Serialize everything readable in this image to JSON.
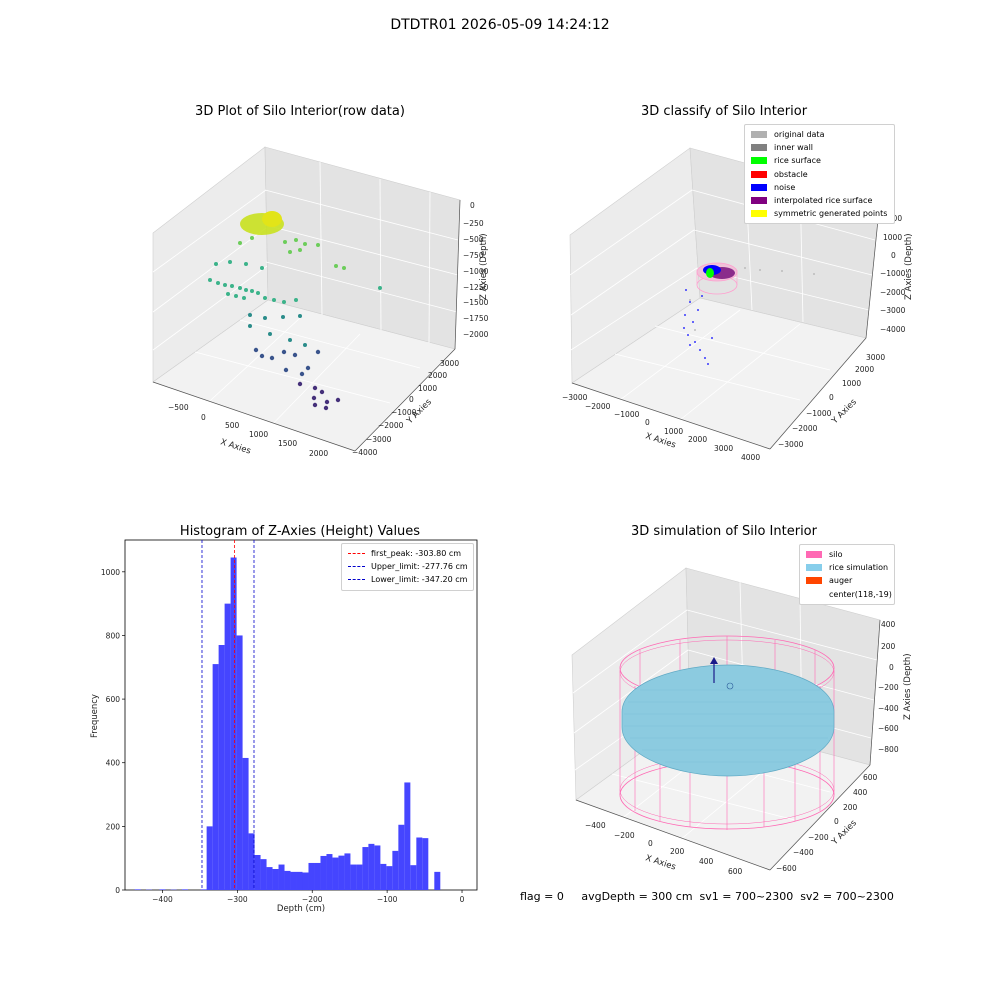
{
  "suptitle": "DTDTR01 2026-05-09 14:24:12",
  "panels": {
    "raw": {
      "title": "3D Plot of Silo Interior(row data)",
      "xlabel": "X Axies",
      "ylabel": "Y Axies",
      "zlabel": "Z Axies (Depth)",
      "xticks": [
        "−500",
        "0",
        "500",
        "1000",
        "1500",
        "2000"
      ],
      "yticks": [
        "−4000",
        "−3000",
        "−2000",
        "−1000",
        "0",
        "1000",
        "2000",
        "3000"
      ],
      "zticks": [
        "0",
        "−250",
        "−500",
        "−750",
        "−1000",
        "−1250",
        "−1500",
        "−1750",
        "−2000"
      ]
    },
    "classify": {
      "title": "3D classify of Silo Interior",
      "xlabel": "X Axies",
      "ylabel": "Y Axies",
      "zlabel": "Z Axies (Depth)",
      "xticks": [
        "−3000",
        "−2000",
        "−1000",
        "0",
        "1000",
        "2000",
        "3000",
        "4000"
      ],
      "yticks": [
        "−3000",
        "−2000",
        "−1000",
        "0",
        "1000",
        "2000",
        "3000"
      ],
      "zticks": [
        "2000",
        "1000",
        "0",
        "−1000",
        "−2000",
        "−3000",
        "−4000"
      ],
      "legend": [
        {
          "label": "original data",
          "color": "#b0b0b0"
        },
        {
          "label": "inner wall",
          "color": "#808080"
        },
        {
          "label": "rice surface",
          "color": "#00ff00"
        },
        {
          "label": "obstacle",
          "color": "#ff0000"
        },
        {
          "label": "noise",
          "color": "#0000ff"
        },
        {
          "label": "interpolated rice surface",
          "color": "#800080"
        },
        {
          "label": "symmetric generated points",
          "color": "#ffff00"
        }
      ]
    },
    "simulation": {
      "title": "3D simulation of Silo Interior",
      "xlabel": "X Axies",
      "ylabel": "Y Axies",
      "zlabel": "Z Axies (Depth)",
      "xticks": [
        "−400",
        "−200",
        "0",
        "200",
        "400",
        "600"
      ],
      "yticks": [
        "−600",
        "−400",
        "−200",
        "0",
        "200",
        "400",
        "600"
      ],
      "zticks": [
        "400",
        "200",
        "0",
        "−200",
        "−400",
        "−600",
        "−800"
      ],
      "legend": [
        {
          "label": "silo",
          "color": "#ff69b4"
        },
        {
          "label": "rice simulation",
          "color": "#87ceeb"
        },
        {
          "label": "auger",
          "color": "#ff4500"
        },
        {
          "label": "center(118,-19)",
          "color": ""
        }
      ]
    }
  },
  "footer": "flag = 0     avgDepth = 300 cm  sv1 = 700~2300  sv2 = 700~2300",
  "chart_data": {
    "type": "bar",
    "title": "Histogram of Z-Axies (Height) Values",
    "xlabel": "Depth (cm)",
    "ylabel": "Frequency",
    "xlim": [
      -450,
      20
    ],
    "ylim": [
      0,
      1100
    ],
    "xticks": [
      -400,
      -300,
      -200,
      -100,
      0
    ],
    "yticks": [
      0,
      200,
      400,
      600,
      800,
      1000
    ],
    "bin_width": 8,
    "bins": [
      [
        -433,
        2
      ],
      [
        -418,
        1
      ],
      [
        -400,
        2
      ],
      [
        -385,
        1
      ],
      [
        -370,
        2
      ],
      [
        -345,
        2
      ],
      [
        -337,
        200
      ],
      [
        -329,
        710
      ],
      [
        -321,
        770
      ],
      [
        -313,
        900
      ],
      [
        -305,
        1045
      ],
      [
        -297,
        800
      ],
      [
        -289,
        415
      ],
      [
        -281,
        178
      ],
      [
        -273,
        110
      ],
      [
        -265,
        97
      ],
      [
        -257,
        72
      ],
      [
        -249,
        66
      ],
      [
        -241,
        80
      ],
      [
        -233,
        60
      ],
      [
        -225,
        57
      ],
      [
        -217,
        57
      ],
      [
        -209,
        55
      ],
      [
        -201,
        85
      ],
      [
        -193,
        85
      ],
      [
        -185,
        107
      ],
      [
        -177,
        113
      ],
      [
        -169,
        102
      ],
      [
        -161,
        108
      ],
      [
        -153,
        115
      ],
      [
        -145,
        80
      ],
      [
        -137,
        80
      ],
      [
        -129,
        135
      ],
      [
        -121,
        145
      ],
      [
        -113,
        140
      ],
      [
        -105,
        82
      ],
      [
        -97,
        75
      ],
      [
        -89,
        123
      ],
      [
        -81,
        205
      ],
      [
        -73,
        338
      ],
      [
        -65,
        78
      ],
      [
        -57,
        165
      ],
      [
        -49,
        163
      ],
      [
        -33,
        57
      ]
    ],
    "bar_color": "#4545ff",
    "lines": [
      {
        "label": "first_peak: -303.80 cm",
        "x": -303.8,
        "color": "#ff0000"
      },
      {
        "label": "Upper_limit: -277.76 cm",
        "x": -277.76,
        "color": "#0000cc"
      },
      {
        "label": "Lower_limit: -347.20 cm",
        "x": -347.2,
        "color": "#0000cc"
      }
    ]
  }
}
